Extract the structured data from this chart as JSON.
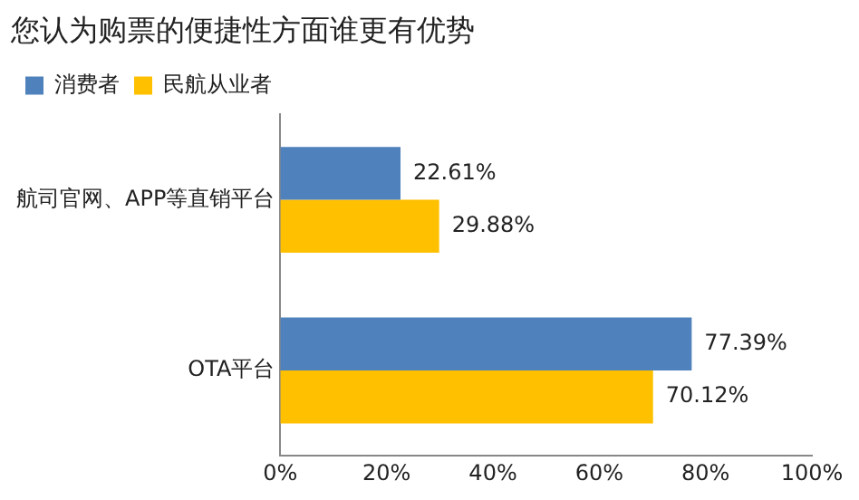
{
  "chart_data": {
    "type": "bar",
    "orientation": "horizontal",
    "title": "您认为购票的便捷性方面谁更有优势",
    "categories": [
      "航司官网、APP等直销平台",
      "OTA平台"
    ],
    "series": [
      {
        "name": "消费者",
        "color": "#4f81bd",
        "values": [
          22.61,
          77.39
        ],
        "value_labels": [
          "22.61%",
          "77.39%"
        ]
      },
      {
        "name": "民航从业者",
        "color": "#ffc000",
        "values": [
          29.88,
          70.12
        ],
        "value_labels": [
          "29.88%",
          "70.12%"
        ]
      }
    ],
    "xlim": [
      0,
      100
    ],
    "xticks": [
      {
        "value": 0,
        "label": "0%"
      },
      {
        "value": 20,
        "label": "20%"
      },
      {
        "value": 40,
        "label": "40%"
      },
      {
        "value": 60,
        "label": "60%"
      },
      {
        "value": 80,
        "label": "80%"
      },
      {
        "value": 100,
        "label": "100%"
      }
    ],
    "grid": false,
    "legend": "top left"
  }
}
